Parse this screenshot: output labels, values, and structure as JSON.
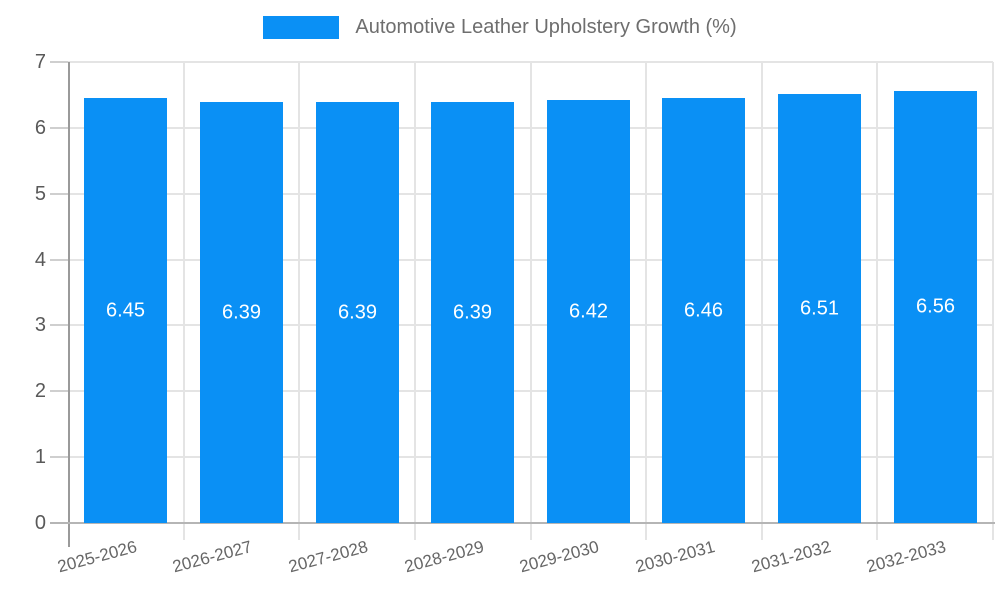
{
  "chart_data": {
    "type": "bar",
    "title": "Automotive Leather Upholstery Growth (%)",
    "categories": [
      "2025-2026",
      "2026-2027",
      "2027-2028",
      "2028-2029",
      "2029-2030",
      "2030-2031",
      "2031-2032",
      "2032-2033"
    ],
    "values": [
      6.45,
      6.39,
      6.39,
      6.39,
      6.42,
      6.46,
      6.51,
      6.56
    ],
    "value_labels": [
      "6.45",
      "6.39",
      "6.39",
      "6.39",
      "6.42",
      "6.46",
      "6.51",
      "6.56"
    ],
    "xlabel": "",
    "ylabel": "",
    "ylim": [
      0,
      7
    ],
    "ytick_step": 1,
    "grid": true,
    "legend_position": "top-center",
    "x_label_rotation_deg": -15
  },
  "colors": {
    "bar": "#0a90f5",
    "value_label": "#ffffff",
    "y_axis_text": "#595959",
    "x_axis_text": "#666666",
    "legend_text": "#6e6e6e",
    "gridline": "#e4e4e4",
    "axis_line": "#9a9a9a",
    "baseline": "#b5b5b5"
  }
}
